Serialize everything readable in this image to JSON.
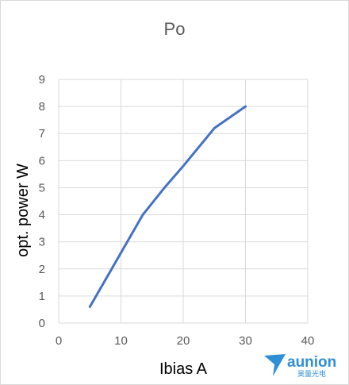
{
  "chart_data": {
    "type": "line",
    "title": "Po",
    "xlabel": "Ibias A",
    "ylabel": "opt. power W",
    "xlim": [
      0,
      40
    ],
    "ylim": [
      0,
      9
    ],
    "xticks": [
      0,
      10,
      20,
      30,
      40
    ],
    "yticks": [
      0,
      1,
      2,
      3,
      4,
      5,
      6,
      7,
      8,
      9
    ],
    "grid": true,
    "legend": "none",
    "series": [
      {
        "x": [
          5,
          9,
          13.5,
          17,
          20,
          25,
          30
        ],
        "y": [
          0.6,
          2.2,
          4.0,
          5.0,
          5.8,
          7.2,
          8.0
        ],
        "color": "#4472c4"
      }
    ]
  },
  "logo": {
    "text": "aunion",
    "subtext": "昊量光电",
    "color": "#2e8fd6"
  }
}
